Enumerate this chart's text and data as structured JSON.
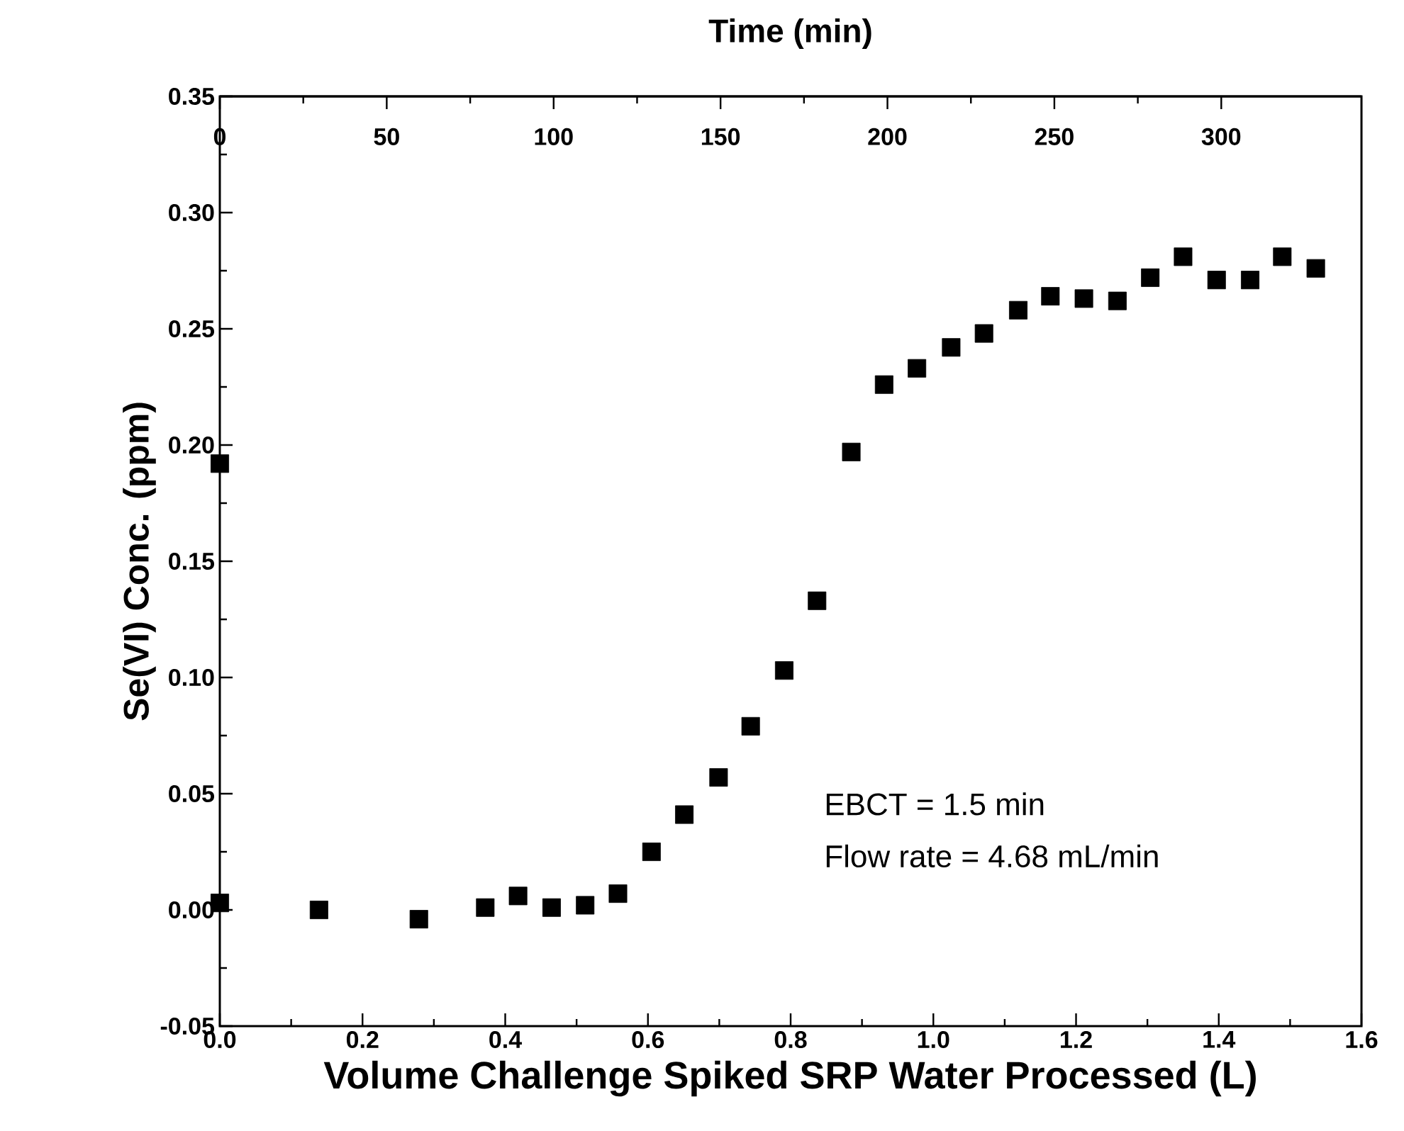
{
  "chart_data": {
    "type": "scatter",
    "xlabel": "Volume Challenge Spiked SRP Water Processed (L)",
    "ylabel": "Se(VI)  Conc. (ppm)",
    "x2label": "Time (min)",
    "xlim": [
      0,
      1.6
    ],
    "xticks": [
      {
        "value": 0,
        "label": "0.0"
      },
      {
        "value": 0.2,
        "label": "0.2"
      },
      {
        "value": 0.4,
        "label": "0.4"
      },
      {
        "value": 0.6,
        "label": "0.6"
      },
      {
        "value": 0.8,
        "label": "0.8"
      },
      {
        "value": 1.0,
        "label": "1.0"
      },
      {
        "value": 1.2,
        "label": "1.2"
      },
      {
        "value": 1.4,
        "label": "1.4"
      },
      {
        "value": 1.6,
        "label": "1.6"
      }
    ],
    "ylim": [
      -0.05,
      0.35
    ],
    "yticks": [
      {
        "value": -0.05,
        "label": "-0.05"
      },
      {
        "value": 0,
        "label": "0.00"
      },
      {
        "value": 0.05,
        "label": "0.05"
      },
      {
        "value": 0.1,
        "label": "0.10"
      },
      {
        "value": 0.15,
        "label": "0.15"
      },
      {
        "value": 0.2,
        "label": "0.20"
      },
      {
        "value": 0.25,
        "label": "0.25"
      },
      {
        "value": 0.3,
        "label": "0.30"
      },
      {
        "value": 0.35,
        "label": "0.35"
      }
    ],
    "x2lim": [
      0,
      342
    ],
    "x2ticks": [
      0,
      50,
      100,
      150,
      200,
      250,
      300
    ],
    "marker": "square",
    "grid": false,
    "annotations": [
      "EBCT = 1.5 min",
      "Flow rate = 4.68 mL/min"
    ],
    "series": [
      {
        "color": "#000000",
        "x": [
          0,
          0,
          0.139,
          0.279,
          0.372,
          0.418,
          0.465,
          0.512,
          0.558,
          0.605,
          0.651,
          0.699,
          0.744,
          0.791,
          0.837,
          0.885,
          0.931,
          0.977,
          1.025,
          1.071,
          1.119,
          1.164,
          1.211,
          1.258,
          1.304,
          1.35,
          1.397,
          1.444,
          1.489,
          1.536
        ],
        "values": [
          0.192,
          0.003,
          0.0,
          -0.004,
          0.001,
          0.006,
          0.001,
          0.002,
          0.007,
          0.025,
          0.041,
          0.057,
          0.079,
          0.103,
          0.133,
          0.197,
          0.226,
          0.233,
          0.242,
          0.248,
          0.258,
          0.264,
          0.263,
          0.262,
          0.272,
          0.281,
          0.271,
          0.271,
          0.281,
          0.276
        ]
      }
    ]
  }
}
